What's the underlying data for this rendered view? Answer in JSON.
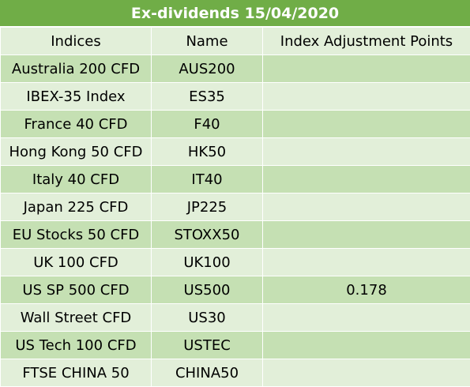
{
  "title": "Ex-dividends 15/04/2020",
  "columns": [
    "Indices",
    "Name",
    "Index Adjustment Points"
  ],
  "rows": [
    [
      "Australia 200 CFD",
      "AUS200",
      ""
    ],
    [
      "IBEX-35 Index",
      "ES35",
      ""
    ],
    [
      "France 40 CFD",
      "F40",
      ""
    ],
    [
      "Hong Kong 50 CFD",
      "HK50",
      ""
    ],
    [
      "Italy 40 CFD",
      "IT40",
      ""
    ],
    [
      "Japan 225 CFD",
      "JP225",
      ""
    ],
    [
      "EU Stocks 50 CFD",
      "STOXX50",
      ""
    ],
    [
      "UK 100 CFD",
      "UK100",
      ""
    ],
    [
      "US SP 500 CFD",
      "US500",
      "0.178"
    ],
    [
      "Wall Street CFD",
      "US30",
      ""
    ],
    [
      "US Tech 100 CFD",
      "USTEC",
      ""
    ],
    [
      "FTSE CHINA 50",
      "CHINA50",
      ""
    ]
  ],
  "colors": {
    "title_bg": "#70ad47",
    "title_text": "#ffffff",
    "row_light": "#e2efd9",
    "row_dark": "#c5e0b3"
  }
}
